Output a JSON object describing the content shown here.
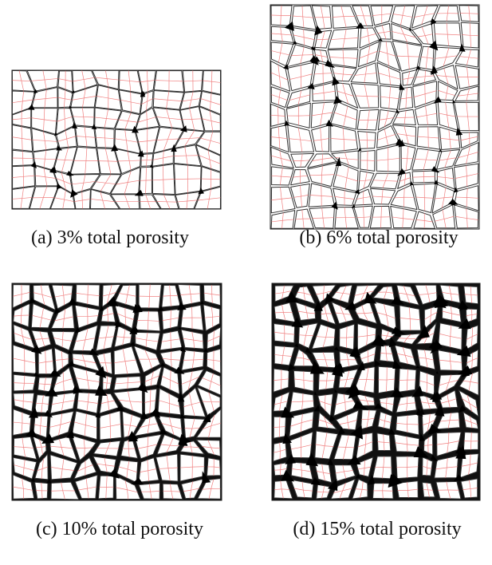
{
  "panels": [
    {
      "caption": "(a) 3% total porosity"
    },
    {
      "caption": "(b) 6% total porosity"
    },
    {
      "caption": "(c) 10% total porosity"
    },
    {
      "caption": "(d) 15% total porosity"
    }
  ]
}
